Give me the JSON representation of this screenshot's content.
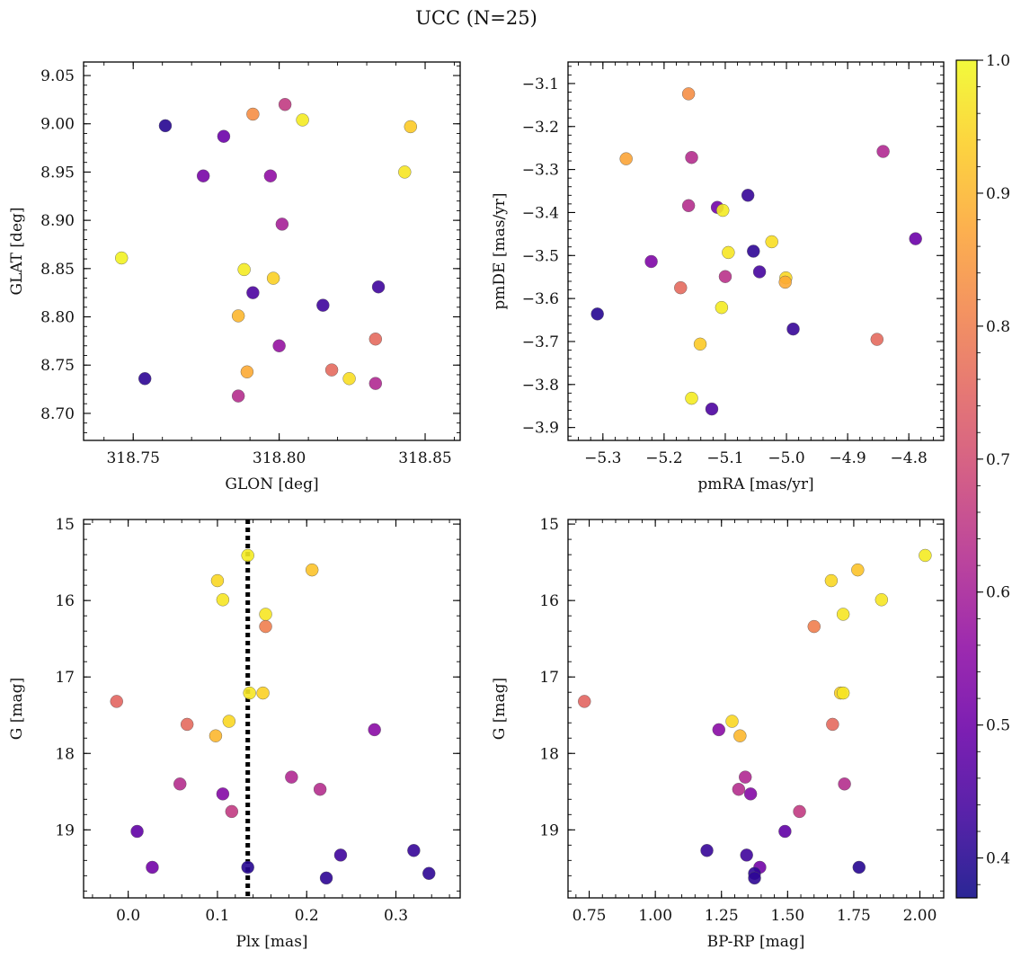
{
  "suptitle": "UCC (N=25)",
  "colorbar": {
    "colormap": "plasma",
    "range": [
      0.37,
      1.0
    ],
    "ticks": [
      "0.4",
      "0.5",
      "0.6",
      "0.7",
      "0.8",
      "0.9",
      "1.0"
    ]
  },
  "chart_data": [
    {
      "type": "scatter",
      "xlabel": "GLON [deg]",
      "ylabel": "GLAT [deg]",
      "xlim": [
        318.733,
        318.862
      ],
      "ylim": [
        8.672,
        9.064
      ],
      "y_inverted": false,
      "xticks": [
        "318.75",
        "318.80",
        "318.85"
      ],
      "yticks": [
        "8.70",
        "8.75",
        "8.80",
        "8.85",
        "8.90",
        "8.95",
        "9.00",
        "9.05"
      ],
      "points": [
        {
          "x": 318.761,
          "y": 8.998,
          "c": 0.4
        },
        {
          "x": 318.781,
          "y": 8.987,
          "c": 0.5
        },
        {
          "x": 318.774,
          "y": 8.946,
          "c": 0.52
        },
        {
          "x": 318.791,
          "y": 9.01,
          "c": 0.83
        },
        {
          "x": 318.802,
          "y": 9.02,
          "c": 0.66
        },
        {
          "x": 318.808,
          "y": 9.004,
          "c": 0.98
        },
        {
          "x": 318.845,
          "y": 8.997,
          "c": 0.93
        },
        {
          "x": 318.797,
          "y": 8.946,
          "c": 0.56
        },
        {
          "x": 318.843,
          "y": 8.95,
          "c": 0.97
        },
        {
          "x": 318.801,
          "y": 8.896,
          "c": 0.6
        },
        {
          "x": 318.746,
          "y": 8.861,
          "c": 0.99
        },
        {
          "x": 318.788,
          "y": 8.849,
          "c": 0.98
        },
        {
          "x": 318.798,
          "y": 8.84,
          "c": 0.94
        },
        {
          "x": 318.834,
          "y": 8.831,
          "c": 0.43
        },
        {
          "x": 318.791,
          "y": 8.825,
          "c": 0.45
        },
        {
          "x": 318.815,
          "y": 8.812,
          "c": 0.43
        },
        {
          "x": 318.786,
          "y": 8.801,
          "c": 0.9
        },
        {
          "x": 318.8,
          "y": 8.77,
          "c": 0.57
        },
        {
          "x": 318.833,
          "y": 8.777,
          "c": 0.76
        },
        {
          "x": 318.818,
          "y": 8.745,
          "c": 0.76
        },
        {
          "x": 318.789,
          "y": 8.743,
          "c": 0.88
        },
        {
          "x": 318.824,
          "y": 8.736,
          "c": 0.96
        },
        {
          "x": 318.754,
          "y": 8.736,
          "c": 0.41
        },
        {
          "x": 318.833,
          "y": 8.731,
          "c": 0.62
        },
        {
          "x": 318.786,
          "y": 8.718,
          "c": 0.63
        }
      ]
    },
    {
      "type": "scatter",
      "xlabel": "pmRA [mas/yr]",
      "ylabel": "pmDE [mas/yr]",
      "xlim": [
        -5.357,
        -4.743
      ],
      "ylim": [
        -3.93,
        -3.05
      ],
      "y_inverted": false,
      "xticks": [
        "−5.3",
        "−5.2",
        "−5.1",
        "−5.0",
        "−4.9",
        "−4.8"
      ],
      "yticks": [
        "−3.9",
        "−3.8",
        "−3.7",
        "−3.6",
        "−3.5",
        "−3.4",
        "−3.3",
        "−3.2",
        "−3.1"
      ],
      "points": [
        {
          "x": -5.16,
          "y": -3.124,
          "c": 0.83
        },
        {
          "x": -5.262,
          "y": -3.275,
          "c": 0.87
        },
        {
          "x": -5.155,
          "y": -3.272,
          "c": 0.63
        },
        {
          "x": -4.842,
          "y": -3.258,
          "c": 0.62
        },
        {
          "x": -5.063,
          "y": -3.36,
          "c": 0.42
        },
        {
          "x": -5.16,
          "y": -3.384,
          "c": 0.63
        },
        {
          "x": -5.113,
          "y": -3.388,
          "c": 0.51
        },
        {
          "x": -5.104,
          "y": -3.395,
          "c": 0.98
        },
        {
          "x": -4.789,
          "y": -3.461,
          "c": 0.5
        },
        {
          "x": -5.024,
          "y": -3.468,
          "c": 0.96
        },
        {
          "x": -5.095,
          "y": -3.493,
          "c": 0.97
        },
        {
          "x": -5.054,
          "y": -3.49,
          "c": 0.41
        },
        {
          "x": -5.221,
          "y": -3.514,
          "c": 0.53
        },
        {
          "x": -5.044,
          "y": -3.538,
          "c": 0.44
        },
        {
          "x": -5.1,
          "y": -3.549,
          "c": 0.64
        },
        {
          "x": -5.001,
          "y": -3.552,
          "c": 0.95
        },
        {
          "x": -5.002,
          "y": -3.562,
          "c": 0.88
        },
        {
          "x": -5.173,
          "y": -3.575,
          "c": 0.76
        },
        {
          "x": -5.106,
          "y": -3.621,
          "c": 0.98
        },
        {
          "x": -5.309,
          "y": -3.636,
          "c": 0.4
        },
        {
          "x": -4.989,
          "y": -3.671,
          "c": 0.42
        },
        {
          "x": -4.852,
          "y": -3.695,
          "c": 0.76
        },
        {
          "x": -5.141,
          "y": -3.706,
          "c": 0.93
        },
        {
          "x": -5.155,
          "y": -3.832,
          "c": 0.98
        },
        {
          "x": -5.122,
          "y": -3.857,
          "c": 0.45
        }
      ]
    },
    {
      "type": "scatter",
      "xlabel": "Plx [mas]",
      "ylabel": "G [mag]",
      "xlim": [
        -0.05,
        0.372
      ],
      "ylim": [
        19.89,
        14.94
      ],
      "y_inverted": true,
      "vline": {
        "x": 0.134,
        "style": "dotted"
      },
      "xticks": [
        "0.0",
        "0.1",
        "0.2",
        "0.3"
      ],
      "yticks": [
        "15",
        "16",
        "17",
        "18",
        "19"
      ],
      "points": [
        {
          "x": 0.134,
          "y": 15.41,
          "c": 0.98
        },
        {
          "x": 0.206,
          "y": 15.6,
          "c": 0.92
        },
        {
          "x": 0.1,
          "y": 15.74,
          "c": 0.95
        },
        {
          "x": 0.106,
          "y": 15.99,
          "c": 0.97
        },
        {
          "x": 0.154,
          "y": 16.18,
          "c": 0.97
        },
        {
          "x": 0.154,
          "y": 16.34,
          "c": 0.8
        },
        {
          "x": -0.013,
          "y": 17.32,
          "c": 0.75
        },
        {
          "x": 0.151,
          "y": 17.21,
          "c": 0.94
        },
        {
          "x": 0.136,
          "y": 17.21,
          "c": 0.97
        },
        {
          "x": 0.113,
          "y": 17.58,
          "c": 0.95
        },
        {
          "x": 0.066,
          "y": 17.62,
          "c": 0.76
        },
        {
          "x": 0.098,
          "y": 17.77,
          "c": 0.9
        },
        {
          "x": 0.276,
          "y": 17.69,
          "c": 0.55
        },
        {
          "x": 0.183,
          "y": 18.31,
          "c": 0.62
        },
        {
          "x": 0.058,
          "y": 18.4,
          "c": 0.63
        },
        {
          "x": 0.215,
          "y": 18.47,
          "c": 0.63
        },
        {
          "x": 0.106,
          "y": 18.53,
          "c": 0.54
        },
        {
          "x": 0.116,
          "y": 18.76,
          "c": 0.66
        },
        {
          "x": 0.01,
          "y": 19.02,
          "c": 0.48
        },
        {
          "x": 0.32,
          "y": 19.27,
          "c": 0.42
        },
        {
          "x": 0.238,
          "y": 19.33,
          "c": 0.43
        },
        {
          "x": 0.027,
          "y": 19.49,
          "c": 0.51
        },
        {
          "x": 0.134,
          "y": 19.49,
          "c": 0.4
        },
        {
          "x": 0.337,
          "y": 19.57,
          "c": 0.41
        },
        {
          "x": 0.222,
          "y": 19.63,
          "c": 0.41
        }
      ]
    },
    {
      "type": "scatter",
      "xlabel": "BP-RP [mag]",
      "ylabel": "G [mag]",
      "xlim": [
        0.67,
        2.09
      ],
      "ylim": [
        19.89,
        14.94
      ],
      "y_inverted": true,
      "xticks": [
        "0.75",
        "1.00",
        "1.25",
        "1.50",
        "1.75",
        "2.00"
      ],
      "yticks": [
        "15",
        "16",
        "17",
        "18",
        "19"
      ],
      "points": [
        {
          "x": 2.02,
          "y": 15.41,
          "c": 0.98
        },
        {
          "x": 1.765,
          "y": 15.6,
          "c": 0.92
        },
        {
          "x": 1.665,
          "y": 15.74,
          "c": 0.95
        },
        {
          "x": 1.855,
          "y": 15.99,
          "c": 0.97
        },
        {
          "x": 1.71,
          "y": 16.18,
          "c": 0.97
        },
        {
          "x": 1.6,
          "y": 16.34,
          "c": 0.8
        },
        {
          "x": 0.732,
          "y": 17.32,
          "c": 0.75
        },
        {
          "x": 1.7,
          "y": 17.21,
          "c": 0.94
        },
        {
          "x": 1.71,
          "y": 17.21,
          "c": 0.97
        },
        {
          "x": 1.29,
          "y": 17.58,
          "c": 0.95
        },
        {
          "x": 1.67,
          "y": 17.62,
          "c": 0.76
        },
        {
          "x": 1.32,
          "y": 17.77,
          "c": 0.9
        },
        {
          "x": 1.24,
          "y": 17.69,
          "c": 0.55
        },
        {
          "x": 1.34,
          "y": 18.31,
          "c": 0.62
        },
        {
          "x": 1.715,
          "y": 18.4,
          "c": 0.63
        },
        {
          "x": 1.315,
          "y": 18.47,
          "c": 0.63
        },
        {
          "x": 1.36,
          "y": 18.53,
          "c": 0.54
        },
        {
          "x": 1.545,
          "y": 18.76,
          "c": 0.66
        },
        {
          "x": 1.49,
          "y": 19.02,
          "c": 0.48
        },
        {
          "x": 1.195,
          "y": 19.27,
          "c": 0.42
        },
        {
          "x": 1.345,
          "y": 19.33,
          "c": 0.43
        },
        {
          "x": 1.395,
          "y": 19.49,
          "c": 0.51
        },
        {
          "x": 1.77,
          "y": 19.49,
          "c": 0.4
        },
        {
          "x": 1.375,
          "y": 19.57,
          "c": 0.41
        },
        {
          "x": 1.375,
          "y": 19.63,
          "c": 0.41
        }
      ]
    }
  ]
}
